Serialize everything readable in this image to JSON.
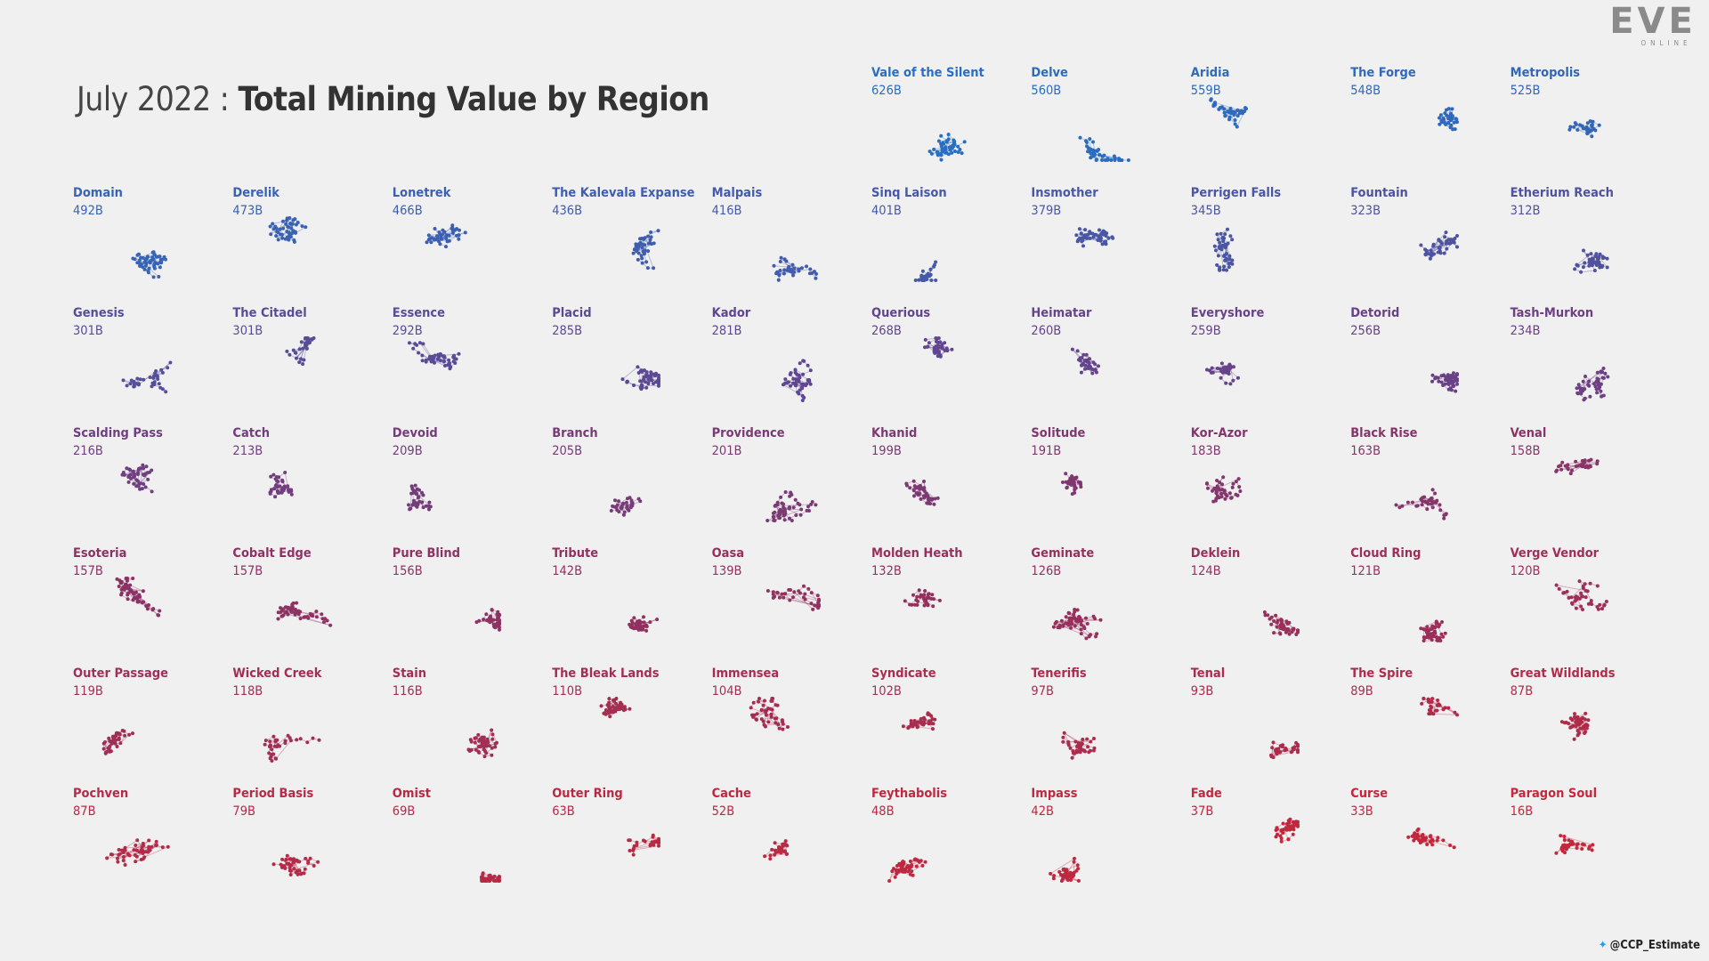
{
  "header": {
    "title_prefix": "July 2022 :",
    "title": "Total Mining Value by Region"
  },
  "logo": {
    "name": "EVE",
    "sub": "ONLINE"
  },
  "credit": "@CCP_Estimate",
  "regions": [
    {
      "name": "Vale of the Silent",
      "value": "626B"
    },
    {
      "name": "Delve",
      "value": "560B"
    },
    {
      "name": "Aridia",
      "value": "559B"
    },
    {
      "name": "The Forge",
      "value": "548B"
    },
    {
      "name": "Metropolis",
      "value": "525B"
    },
    {
      "name": "Domain",
      "value": "492B"
    },
    {
      "name": "Derelik",
      "value": "473B"
    },
    {
      "name": "Lonetrek",
      "value": "466B"
    },
    {
      "name": "The Kalevala Expanse",
      "value": "436B"
    },
    {
      "name": "Malpais",
      "value": "416B"
    },
    {
      "name": "Sinq Laison",
      "value": "401B"
    },
    {
      "name": "Insmother",
      "value": "379B"
    },
    {
      "name": "Perrigen Falls",
      "value": "345B"
    },
    {
      "name": "Fountain",
      "value": "323B"
    },
    {
      "name": "Etherium Reach",
      "value": "312B"
    },
    {
      "name": "Genesis",
      "value": "301B"
    },
    {
      "name": "The Citadel",
      "value": "301B"
    },
    {
      "name": "Essence",
      "value": "292B"
    },
    {
      "name": "Placid",
      "value": "285B"
    },
    {
      "name": "Kador",
      "value": "281B"
    },
    {
      "name": "Querious",
      "value": "268B"
    },
    {
      "name": "Heimatar",
      "value": "260B"
    },
    {
      "name": "Everyshore",
      "value": "259B"
    },
    {
      "name": "Detorid",
      "value": "256B"
    },
    {
      "name": "Tash-Murkon",
      "value": "234B"
    },
    {
      "name": "Scalding Pass",
      "value": "216B"
    },
    {
      "name": "Catch",
      "value": "213B"
    },
    {
      "name": "Devoid",
      "value": "209B"
    },
    {
      "name": "Branch",
      "value": "205B"
    },
    {
      "name": "Providence",
      "value": "201B"
    },
    {
      "name": "Khanid",
      "value": "199B"
    },
    {
      "name": "Solitude",
      "value": "191B"
    },
    {
      "name": "Kor-Azor",
      "value": "183B"
    },
    {
      "name": "Black Rise",
      "value": "163B"
    },
    {
      "name": "Venal",
      "value": "158B"
    },
    {
      "name": "Esoteria",
      "value": "157B"
    },
    {
      "name": "Cobalt Edge",
      "value": "157B"
    },
    {
      "name": "Pure Blind",
      "value": "156B"
    },
    {
      "name": "Tribute",
      "value": "142B"
    },
    {
      "name": "Oasa",
      "value": "139B"
    },
    {
      "name": "Molden Heath",
      "value": "132B"
    },
    {
      "name": "Geminate",
      "value": "126B"
    },
    {
      "name": "Deklein",
      "value": "124B"
    },
    {
      "name": "Cloud Ring",
      "value": "121B"
    },
    {
      "name": "Verge Vendor",
      "value": "120B"
    },
    {
      "name": "Outer Passage",
      "value": "119B"
    },
    {
      "name": "Wicked Creek",
      "value": "118B"
    },
    {
      "name": "Stain",
      "value": "116B"
    },
    {
      "name": "The Bleak Lands",
      "value": "110B"
    },
    {
      "name": "Immensea",
      "value": "104B"
    },
    {
      "name": "Syndicate",
      "value": "102B"
    },
    {
      "name": "Tenerifis",
      "value": "97B"
    },
    {
      "name": "Tenal",
      "value": "93B"
    },
    {
      "name": "The Spire",
      "value": "89B"
    },
    {
      "name": "Great Wildlands",
      "value": "87B"
    },
    {
      "name": "Pochven",
      "value": "87B"
    },
    {
      "name": "Period Basis",
      "value": "79B"
    },
    {
      "name": "Omist",
      "value": "69B"
    },
    {
      "name": "Outer Ring",
      "value": "63B"
    },
    {
      "name": "Cache",
      "value": "52B"
    },
    {
      "name": "Feythabolis",
      "value": "48B"
    },
    {
      "name": "Impass",
      "value": "42B"
    },
    {
      "name": "Fade",
      "value": "37B"
    },
    {
      "name": "Curse",
      "value": "33B"
    },
    {
      "name": "Paragon Soul",
      "value": "16B"
    }
  ]
}
